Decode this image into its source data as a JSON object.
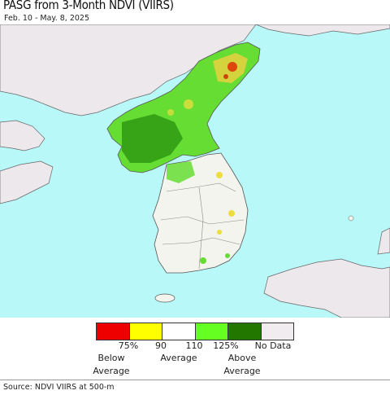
{
  "header": {
    "title": "PASG from 3-Month NDVI (VIIRS)",
    "subtitle": "Feb. 10 - May. 8, 2025"
  },
  "map": {
    "colors": {
      "sea": "#b8f8f8",
      "foreign_land": "#ece8ec",
      "north_green": "#66dd33",
      "south_land": "#f4f4ee",
      "borders": "#777777"
    }
  },
  "legend": {
    "swatches": [
      {
        "color": "#ee0000",
        "name": "below-75"
      },
      {
        "color": "#ffff00",
        "name": "75-90"
      },
      {
        "color": "#ffffff",
        "name": "90-110"
      },
      {
        "color": "#66ff22",
        "name": "110-125"
      },
      {
        "color": "#227700",
        "name": "above-125"
      },
      {
        "color": "#f0ecf0",
        "name": "no-data"
      }
    ],
    "ticks": [
      "75%",
      "90",
      "110",
      "125%",
      "No Data"
    ],
    "categories": {
      "below": "Below\nAverage",
      "average": "Average",
      "above": "Above\nAverage"
    }
  },
  "footer": {
    "source": "Source: NDVI VIIRS at 500-m"
  }
}
